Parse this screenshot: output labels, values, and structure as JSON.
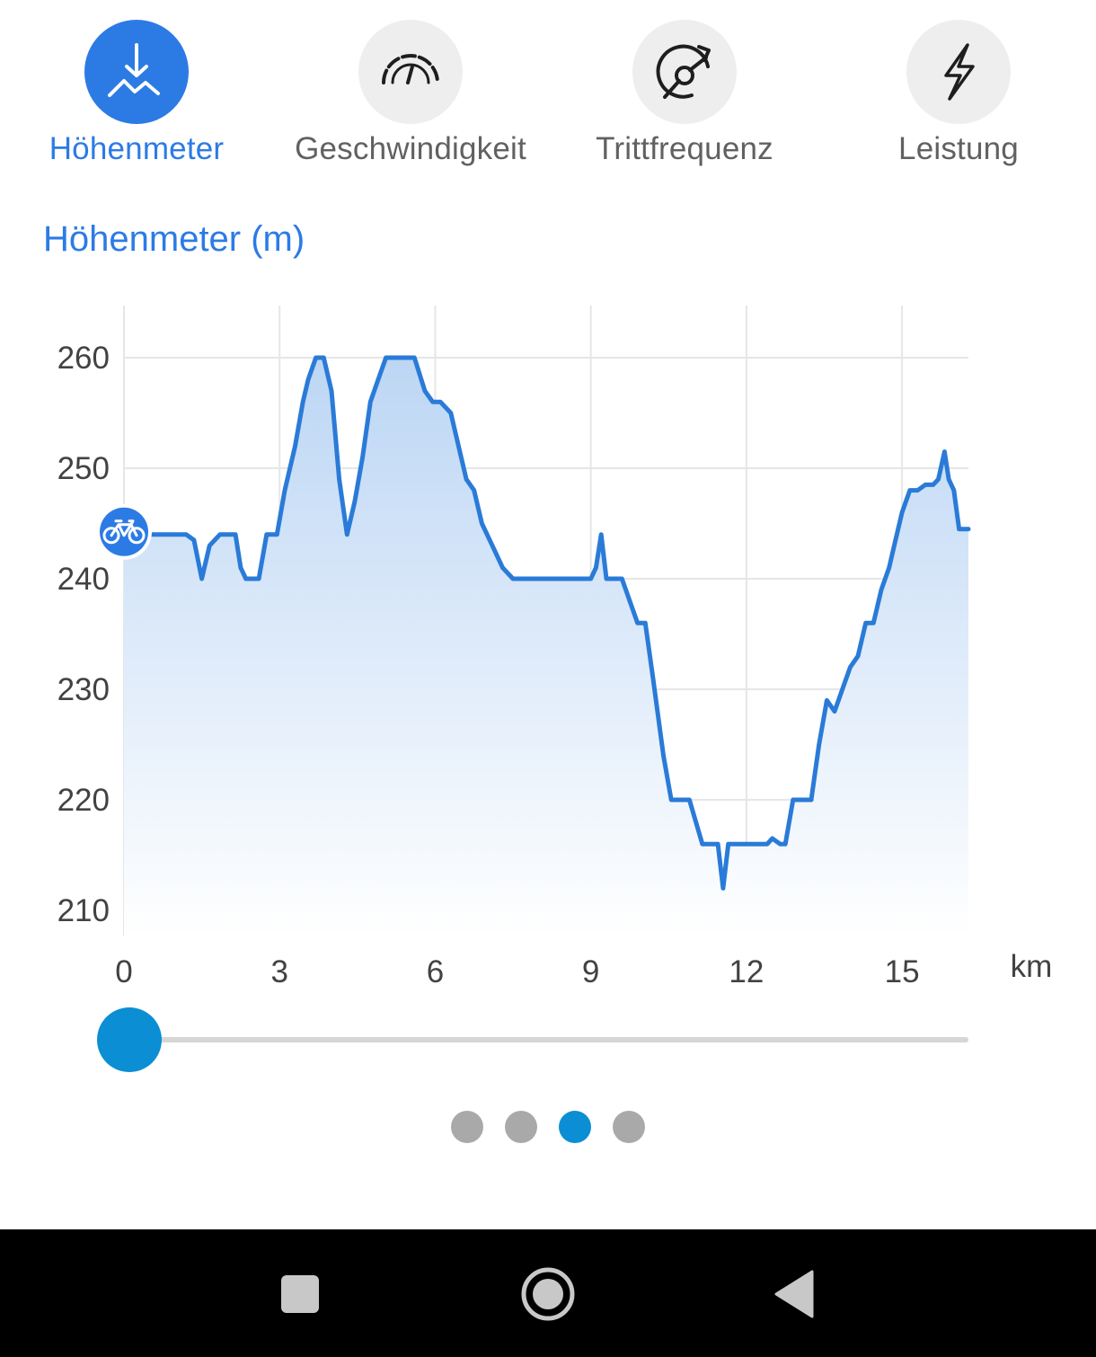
{
  "tabs": [
    {
      "label": "Höhenmeter",
      "icon": "elevation-icon",
      "active": true
    },
    {
      "label": "Geschwindigkeit",
      "icon": "speedometer-icon",
      "active": false
    },
    {
      "label": "Trittfrequenz",
      "icon": "cadence-icon",
      "active": false
    },
    {
      "label": "Leistung",
      "icon": "lightning-icon",
      "active": false
    }
  ],
  "section_title": "Höhenmeter (m)",
  "colors": {
    "accent": "#2c7be5",
    "line": "#2a7bd8",
    "fill_top": "#bcd6f4",
    "grid": "#e6e6e6",
    "slider": "#0b8ed3",
    "dot_inactive": "#a9a9a9"
  },
  "chart_data": {
    "type": "area",
    "xlabel": "km",
    "ylabel": "",
    "xlim": [
      0,
      16.3
    ],
    "ylim": [
      206,
      265
    ],
    "x_ticks": [
      0,
      3,
      6,
      9,
      12,
      15
    ],
    "y_ticks": [
      210,
      220,
      230,
      240,
      250,
      260
    ],
    "grid": true,
    "marker": {
      "icon": "bicycle-icon",
      "x": 0,
      "y": 244
    },
    "series": [
      {
        "x": [
          0,
          1.2,
          1.35,
          1.5,
          1.65,
          1.85,
          2.15,
          2.25,
          2.35,
          2.6,
          2.75,
          2.95,
          3.1,
          3.3,
          3.45,
          3.55,
          3.7,
          3.85,
          4.0,
          4.15,
          4.3,
          4.45,
          4.6,
          4.75,
          4.9,
          5.05,
          5.2,
          5.35,
          5.6,
          5.8,
          5.95,
          6.1,
          6.3,
          6.5,
          6.6,
          6.75,
          6.9,
          7.1,
          7.3,
          7.5,
          7.65,
          8.0,
          8.5,
          9.0,
          9.1,
          9.2,
          9.3,
          9.4,
          9.6,
          9.9,
          10.05,
          10.2,
          10.4,
          10.55,
          10.75,
          10.9,
          11.15,
          11.35,
          11.45,
          11.55,
          11.65,
          11.75,
          11.85,
          12.15,
          12.4,
          12.5,
          12.65,
          12.75,
          12.9,
          13.1,
          13.25,
          13.4,
          13.55,
          13.7,
          13.85,
          14.0,
          14.15,
          14.3,
          14.45,
          14.6,
          14.75,
          14.85,
          15.0,
          15.15,
          15.3,
          15.45,
          15.6,
          15.7,
          15.82,
          15.9,
          16.0,
          16.1,
          16.28
        ],
        "y": [
          244,
          244,
          243.5,
          240,
          243,
          244,
          244,
          241,
          240,
          240,
          244,
          244,
          248,
          252,
          256,
          258,
          260,
          260,
          257,
          249,
          244,
          247,
          251,
          256,
          258,
          260,
          260,
          260,
          260,
          257,
          256,
          256,
          255,
          251,
          249,
          248,
          245,
          243,
          241,
          240,
          240,
          240,
          240,
          240,
          241,
          244,
          240,
          240,
          240,
          236,
          236,
          231,
          224,
          220,
          220,
          220,
          216,
          216,
          216,
          212,
          216,
          216,
          216,
          216,
          216,
          216.5,
          216,
          216,
          220,
          220,
          220,
          225,
          229,
          228,
          230,
          232,
          233,
          236,
          236,
          239,
          241,
          243,
          246,
          248,
          248,
          248.5,
          248.5,
          249,
          251.5,
          249,
          248,
          244.5,
          244.5
        ]
      }
    ]
  }
}
